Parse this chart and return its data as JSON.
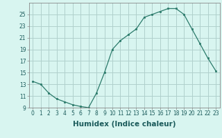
{
  "x": [
    0,
    1,
    2,
    3,
    4,
    5,
    6,
    7,
    8,
    9,
    10,
    11,
    12,
    13,
    14,
    15,
    16,
    17,
    18,
    19,
    20,
    21,
    22,
    23
  ],
  "y": [
    13.5,
    13.0,
    11.5,
    10.5,
    10.0,
    9.5,
    9.2,
    9.0,
    11.5,
    15.0,
    19.0,
    20.5,
    21.5,
    22.5,
    24.5,
    25.0,
    25.5,
    26.0,
    26.0,
    25.0,
    22.5,
    20.0,
    17.5,
    15.3
  ],
  "xlabel": "Humidex (Indice chaleur)",
  "line_color": "#2a7a6a",
  "marker": "s",
  "marker_size": 1.8,
  "bg_color": "#d8f5f0",
  "grid_color": "#b0d0cc",
  "ylim": [
    9,
    27
  ],
  "xlim": [
    -0.5,
    23.5
  ],
  "yticks": [
    9,
    11,
    13,
    15,
    17,
    19,
    21,
    23,
    25
  ],
  "xtick_labels": [
    "0",
    "1",
    "2",
    "3",
    "4",
    "5",
    "6",
    "7",
    "8",
    "9",
    "10",
    "11",
    "12",
    "13",
    "14",
    "15",
    "16",
    "17",
    "18",
    "19",
    "20",
    "21",
    "22",
    "23"
  ],
  "tick_fontsize": 5.5,
  "xlabel_fontsize": 7.5
}
